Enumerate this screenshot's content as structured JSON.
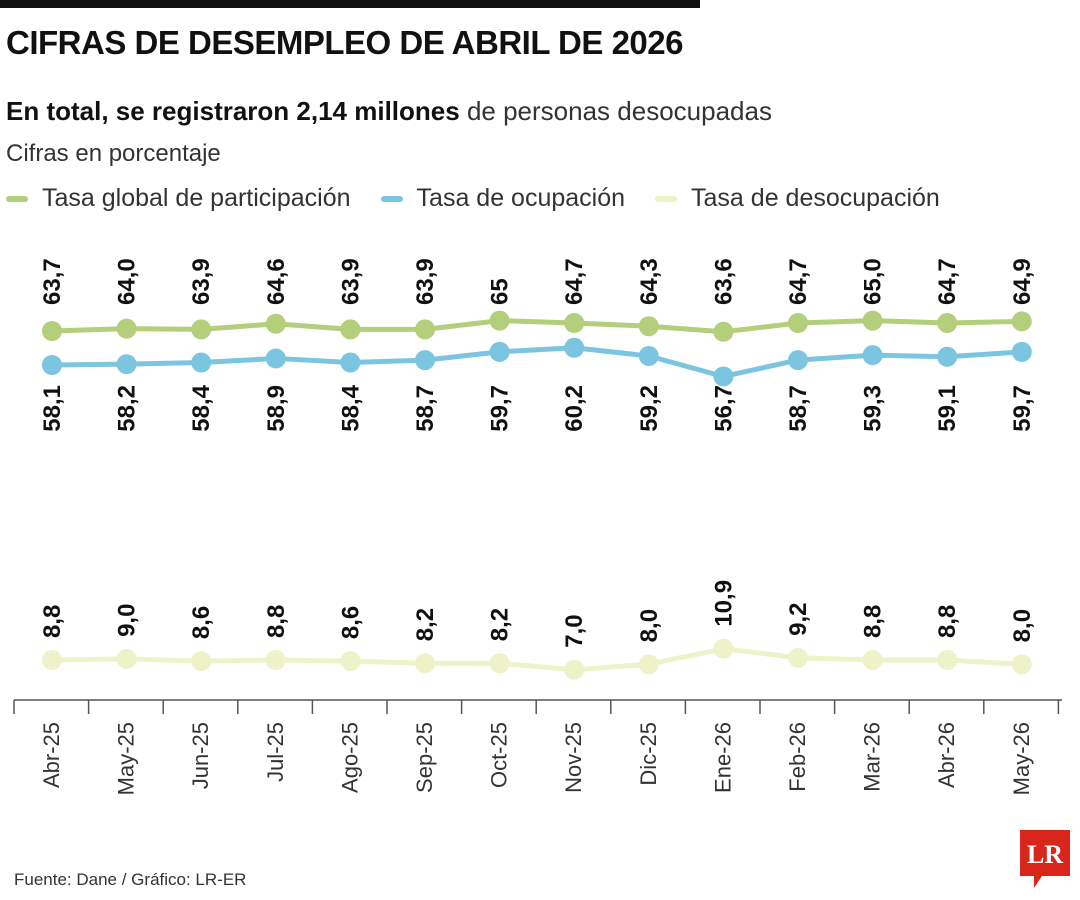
{
  "header": {
    "title": "CIFRAS DE DESEMPLEO DE ABRIL DE 2026",
    "subtitle_bold": "En total, se registraron 2,14 millones",
    "subtitle_rest": "de personas desocupadas",
    "unit": "Cifras en porcentaje"
  },
  "legend": [
    {
      "label": "Tasa global de participación",
      "color": "#b4cf7c"
    },
    {
      "label": "Tasa de ocupación",
      "color": "#7cc5e0"
    },
    {
      "label": "Tasa de desocupación",
      "color": "#eef2c8"
    }
  ],
  "chart_data": {
    "type": "line",
    "categories": [
      "Abr-25",
      "May-25",
      "Jun-25",
      "Jul-25",
      "Ago-25",
      "Sep-25",
      "Oct-25",
      "Nov-25",
      "Dic-25",
      "Ene-26",
      "Feb-26",
      "Mar-26",
      "Abr-26",
      "May-26"
    ],
    "series": [
      {
        "name": "Tasa global de participación",
        "color": "#b4cf7c",
        "values": [
          63.7,
          64.0,
          63.9,
          64.6,
          63.9,
          63.9,
          65,
          64.7,
          64.3,
          63.6,
          64.7,
          65.0,
          64.7,
          64.9
        ],
        "labels": [
          "63,7",
          "64,0",
          "63,9",
          "64,6",
          "63,9",
          "63,9",
          "65",
          "64,7",
          "64,3",
          "63,6",
          "64,7",
          "65,0",
          "64,7",
          "64,9"
        ]
      },
      {
        "name": "Tasa de ocupación",
        "color": "#7cc5e0",
        "values": [
          58.1,
          58.2,
          58.4,
          58.9,
          58.4,
          58.7,
          59.7,
          60.2,
          59.2,
          56.7,
          58.7,
          59.3,
          59.1,
          59.7
        ],
        "labels": [
          "58,1",
          "58,2",
          "58,4",
          "58,9",
          "58,4",
          "58,7",
          "59,7",
          "60,2",
          "59,2",
          "56,7",
          "58,7",
          "59,3",
          "59,1",
          "59,7"
        ]
      },
      {
        "name": "Tasa de desocupación",
        "color": "#eef2c8",
        "values": [
          8.8,
          9.0,
          8.6,
          8.8,
          8.6,
          8.2,
          8.2,
          7.0,
          8.0,
          10.9,
          9.2,
          8.8,
          8.8,
          8.0
        ],
        "labels": [
          "8,8",
          "9,0",
          "8,6",
          "8,8",
          "8,6",
          "8,2",
          "8,2",
          "7,0",
          "8,0",
          "10,9",
          "9,2",
          "8,8",
          "8,8",
          "8,0"
        ]
      }
    ]
  },
  "footer": {
    "source": "Fuente: Dane / Gráfico: LR-ER",
    "logo_text": "LR",
    "logo_color": "#d9261c"
  }
}
